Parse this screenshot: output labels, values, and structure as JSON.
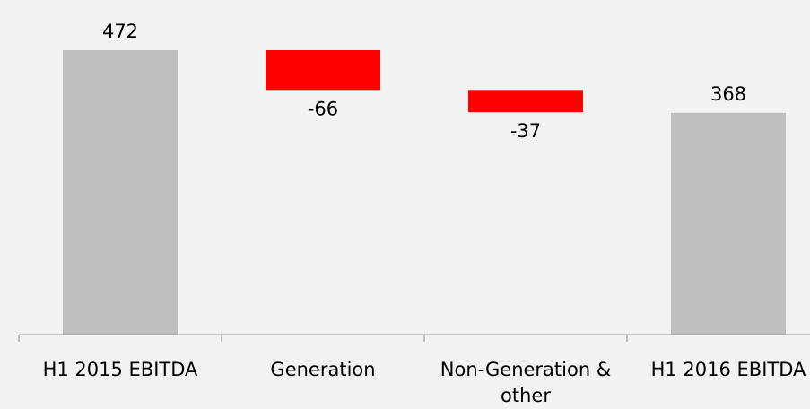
{
  "chart_data": {
    "type": "bar",
    "subtype": "waterfall",
    "title": "",
    "xlabel": "",
    "ylabel": "",
    "categories": [
      [
        "H1 2015 EBITDA"
      ],
      [
        "Generation"
      ],
      [
        "Non-Generation &",
        "other"
      ],
      [
        "H1 2016 EBITDA"
      ]
    ],
    "steps": [
      {
        "kind": "total",
        "value": 472,
        "label": "472"
      },
      {
        "kind": "delta",
        "value": -66,
        "label": "-66"
      },
      {
        "kind": "delta",
        "value": -37,
        "label": "-37"
      },
      {
        "kind": "total",
        "value": 368,
        "label": "368"
      }
    ],
    "ylim": [
      0,
      472
    ],
    "grid": false,
    "legend": "none",
    "colors": {
      "total": "#bfbfbf",
      "negative": "#ff0000",
      "axis": "#8c8c8c",
      "background": "#f2f2f2"
    }
  }
}
